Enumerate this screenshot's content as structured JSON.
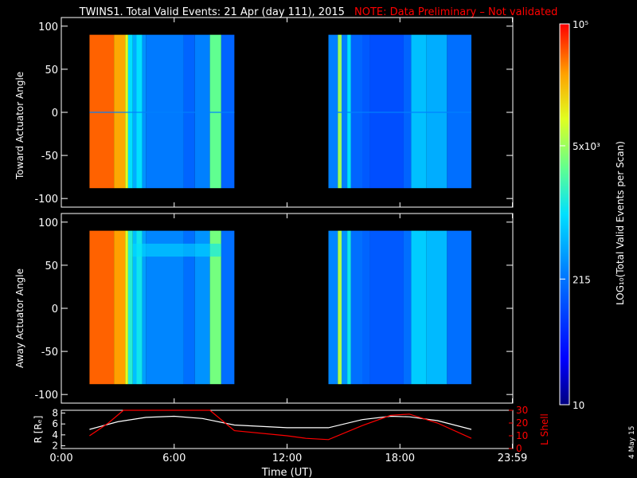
{
  "title": {
    "main": "TWINS1. Total Valid Events: 21 Apr (day 111), 2015",
    "note": "NOTE: Data Preliminary – Not validated",
    "note_color": "#ff0000"
  },
  "date_stamp": "4 May 15",
  "chart_data": [
    {
      "type": "heatmap",
      "ylabel": "Toward Actuator Angle",
      "ylim": [
        -110,
        110
      ],
      "yticks": [
        "100",
        "50",
        "0",
        "-50",
        "-100"
      ],
      "ytick_values": [
        100,
        50,
        0,
        -50,
        -100
      ],
      "xlim": [
        0,
        24
      ],
      "data_y_range": [
        -88,
        90
      ],
      "blocks": [
        {
          "x_range": [
            1.5,
            9.2
          ],
          "stripes": [
            [
              1.5,
              0.92
            ],
            [
              2.8,
              0.86
            ],
            [
              3.4,
              0.75
            ],
            [
              3.55,
              0.5
            ],
            [
              3.8,
              0.42
            ],
            [
              4.0,
              0.5
            ],
            [
              4.3,
              0.38
            ],
            [
              4.5,
              0.34
            ],
            [
              6.5,
              0.3
            ],
            [
              7.1,
              0.35
            ],
            [
              7.9,
              0.62
            ],
            [
              8.5,
              0.3
            ],
            [
              9.2,
              0
            ]
          ]
        },
        {
          "x_range": [
            14.2,
            21.8
          ],
          "stripes": [
            [
              14.2,
              0.35
            ],
            [
              14.7,
              0.68
            ],
            [
              14.9,
              0.35
            ],
            [
              15.2,
              0.5
            ],
            [
              15.4,
              0.3
            ],
            [
              16.0,
              0.28
            ],
            [
              16.4,
              0.26
            ],
            [
              18.2,
              0.3
            ],
            [
              18.6,
              0.45
            ],
            [
              19.4,
              0.42
            ],
            [
              20.5,
              0.32
            ],
            [
              21.8,
              0
            ]
          ]
        }
      ],
      "zero_line_level": 0.3
    },
    {
      "type": "heatmap",
      "ylabel": "Away Actuator Angle",
      "ylim": [
        -110,
        110
      ],
      "yticks": [
        "100",
        "50",
        "0",
        "-50",
        "-100"
      ],
      "ytick_values": [
        100,
        50,
        0,
        -50,
        -100
      ],
      "xlim": [
        0,
        24
      ],
      "data_y_range": [
        -88,
        90
      ],
      "blocks": [
        {
          "x_range": [
            1.5,
            9.2
          ],
          "stripes": [
            [
              1.5,
              0.92
            ],
            [
              2.8,
              0.87
            ],
            [
              3.4,
              0.75
            ],
            [
              3.55,
              0.55
            ],
            [
              3.8,
              0.45
            ],
            [
              4.0,
              0.52
            ],
            [
              4.3,
              0.4
            ],
            [
              4.5,
              0.36
            ],
            [
              6.5,
              0.32
            ],
            [
              7.1,
              0.38
            ],
            [
              7.9,
              0.64
            ],
            [
              8.5,
              0.32
            ],
            [
              9.2,
              0
            ]
          ]
        },
        {
          "x_range": [
            14.2,
            21.8
          ],
          "stripes": [
            [
              14.2,
              0.36
            ],
            [
              14.7,
              0.7
            ],
            [
              14.9,
              0.38
            ],
            [
              15.2,
              0.52
            ],
            [
              15.4,
              0.32
            ],
            [
              16.0,
              0.3
            ],
            [
              16.4,
              0.28
            ],
            [
              18.2,
              0.32
            ],
            [
              18.6,
              0.47
            ],
            [
              19.4,
              0.44
            ],
            [
              20.5,
              0.32
            ],
            [
              21.8,
              0
            ]
          ]
        }
      ],
      "band": {
        "x_range": [
          3.8,
          8.5
        ],
        "y_values": [
          60,
          75
        ],
        "level": 0.5
      }
    },
    {
      "type": "line",
      "ylabel_left": "R [Rₑ]",
      "ylabel_right": "L Shell",
      "ylim_left": [
        1.5,
        8.5
      ],
      "ylim_right": [
        0,
        30
      ],
      "yticks_left": [
        "8",
        "6",
        "4",
        "2"
      ],
      "ytick_values_left": [
        8,
        6,
        4,
        2
      ],
      "yticks_right": [
        "30",
        "20",
        "10",
        "0"
      ],
      "ytick_values_right": [
        30,
        20,
        10,
        0
      ],
      "xlim": [
        0,
        24
      ],
      "xlabel": "Time (UT)",
      "xticks": [
        "0:00",
        "6:00",
        "12:00",
        "18:00",
        "23:59"
      ],
      "xtick_values": [
        0,
        6,
        12,
        18,
        23.98
      ],
      "series": [
        {
          "color": "#ffffff",
          "axis": "left",
          "x": [
            1.5,
            3,
            4.5,
            6,
            7.5,
            9.2,
            12,
            14.2,
            16,
            17.5,
            18.5,
            20,
            21.8
          ],
          "y": [
            5.0,
            6.4,
            7.2,
            7.4,
            7.0,
            5.8,
            5.3,
            5.3,
            6.8,
            7.4,
            7.3,
            6.6,
            5.0
          ]
        },
        {
          "color": "#ff0000",
          "axis": "right",
          "x": [
            1.5,
            2.5,
            3.3,
            7.9,
            9.2,
            12,
            13,
            14.2,
            16,
            17.5,
            18.5,
            20,
            21.8
          ],
          "y": [
            10,
            20,
            32,
            32,
            14,
            10,
            8,
            7,
            18,
            26,
            27,
            20,
            8
          ]
        }
      ]
    }
  ],
  "colorbar": {
    "label": "LOG₁₀(Total Valid Events per Scan)",
    "ticks": [
      "10⁵",
      "5x10³",
      "215",
      "10"
    ],
    "tick_levels": [
      1.0,
      0.68,
      0.33,
      0.0
    ]
  }
}
